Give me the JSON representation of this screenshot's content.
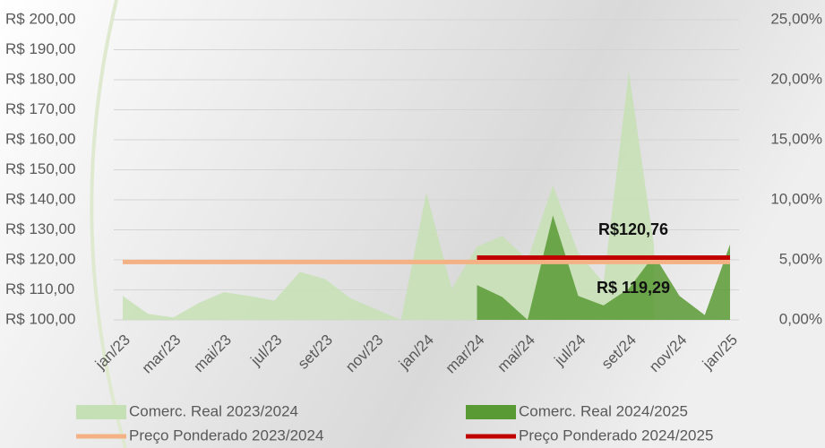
{
  "chart_data": {
    "type": "combo",
    "categories": [
      "jan/23",
      null,
      "mar/23",
      null,
      "mai/23",
      null,
      "jul/23",
      null,
      "set/23",
      null,
      "nov/23",
      null,
      "jan/24",
      null,
      "mar/24",
      null,
      "mai/24",
      null,
      "jul/24",
      null,
      "set/24",
      null,
      "nov/24",
      null,
      "jan/25"
    ],
    "series": [
      {
        "name": "Comerc. Real 2023/2024",
        "type": "area",
        "axis": "y2",
        "color": "#c5e0b4",
        "values": [
          2.0,
          0.5,
          0.2,
          1.4,
          2.3,
          2.0,
          1.6,
          4.0,
          3.4,
          1.8,
          0.9,
          0,
          10.6,
          2.6,
          6.1,
          7.0,
          5.0,
          11.2,
          5.6,
          3.1,
          20.7,
          6.1,
          null,
          null,
          null
        ]
      },
      {
        "name": "Comerc. Real 2024/2025",
        "type": "area",
        "axis": "y2",
        "color": "#5a9a35",
        "values": [
          null,
          null,
          null,
          null,
          null,
          null,
          null,
          null,
          null,
          null,
          null,
          null,
          null,
          null,
          2.9,
          1.9,
          0,
          8.7,
          2.0,
          1.2,
          2.6,
          5.4,
          2.0,
          0.4,
          6.3
        ]
      },
      {
        "name": "Preço Ponderado 2023/2024",
        "type": "line",
        "color": "#f4b183",
        "values": [
          119.29,
          119.29,
          119.29,
          119.29,
          119.29,
          119.29,
          119.29,
          119.29,
          119.29,
          119.29,
          119.29,
          119.29,
          119.29,
          119.29,
          119.29,
          119.29,
          119.29,
          119.29,
          119.29,
          119.29,
          119.29,
          119.29,
          119.29,
          119.29,
          119.29
        ],
        "value_labels": [
          null,
          null,
          null,
          null,
          null,
          null,
          null,
          null,
          null,
          null,
          null,
          null,
          null,
          null,
          null,
          null,
          null,
          null,
          null,
          null,
          "R$ 119,29",
          null,
          null,
          null,
          null
        ]
      },
      {
        "name": "Preço Ponderado 2024/2025",
        "type": "line",
        "color": "#c00000",
        "values": [
          null,
          null,
          null,
          null,
          null,
          null,
          null,
          null,
          null,
          null,
          null,
          null,
          null,
          null,
          120.76,
          120.76,
          120.76,
          120.76,
          120.76,
          120.76,
          120.76,
          120.76,
          120.76,
          120.76,
          120.76
        ],
        "value_labels": [
          null,
          null,
          null,
          null,
          null,
          null,
          null,
          null,
          null,
          null,
          null,
          null,
          null,
          null,
          null,
          null,
          null,
          null,
          null,
          null,
          "R$120,76",
          null,
          null,
          null,
          null
        ]
      }
    ],
    "ylim": [
      100,
      200
    ],
    "yticks": [
      {
        "value": 100,
        "label": "R$ 100,00"
      },
      {
        "value": 110,
        "label": "R$ 110,00"
      },
      {
        "value": 120,
        "label": "R$ 120,00"
      },
      {
        "value": 130,
        "label": "R$ 130,00"
      },
      {
        "value": 140,
        "label": "R$ 140,00"
      },
      {
        "value": 150,
        "label": "R$ 150,00"
      },
      {
        "value": 160,
        "label": "R$ 160,00"
      },
      {
        "value": 170,
        "label": "R$ 170,00"
      },
      {
        "value": 180,
        "label": "R$ 180,00"
      },
      {
        "value": 190,
        "label": "R$ 190,00"
      },
      {
        "value": 200,
        "label": "R$ 200,00"
      }
    ],
    "y2lim": [
      0,
      25
    ],
    "y2ticks": [
      {
        "value": 0,
        "label": "0,00%"
      },
      {
        "value": 5,
        "label": "5,00%"
      },
      {
        "value": 10,
        "label": "10,00%"
      },
      {
        "value": 15,
        "label": "15,00%"
      },
      {
        "value": 20,
        "label": "20,00%"
      },
      {
        "value": 25,
        "label": "25,00%"
      }
    ],
    "grid": true
  }
}
